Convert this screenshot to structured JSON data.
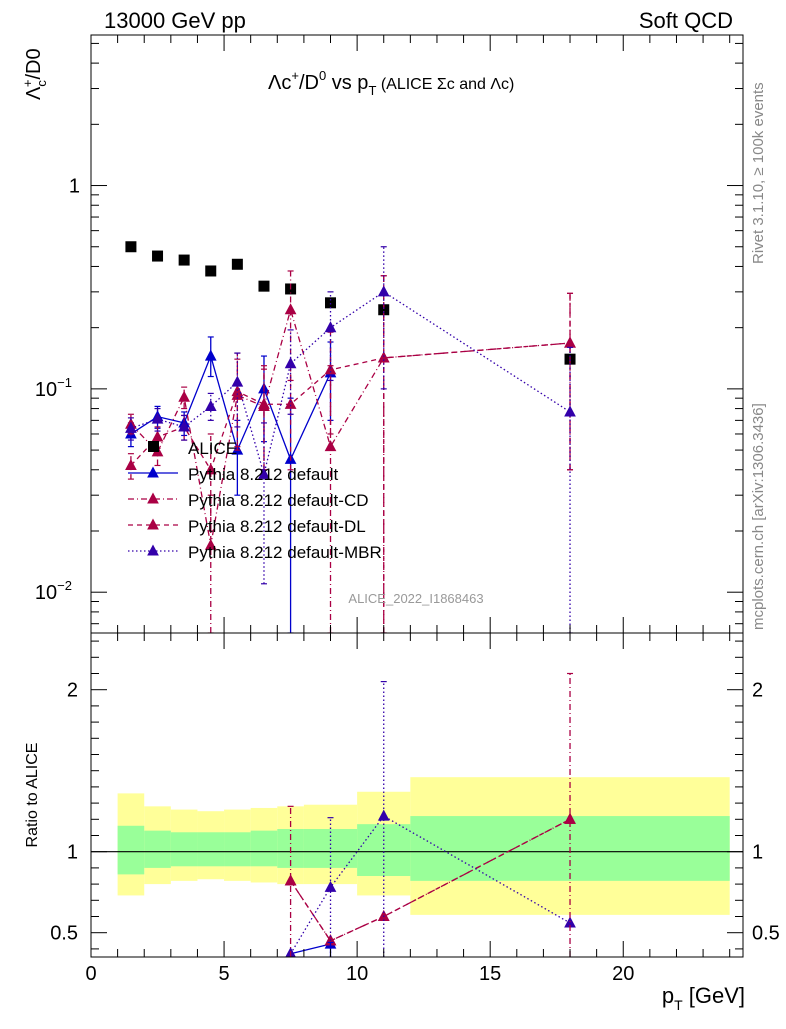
{
  "header": {
    "left": "13000 GeV pp",
    "right": "Soft QCD"
  },
  "side_label": {
    "rivet": "Rivet 3.1.10, ≥ 100k events",
    "mcplots": "mcplots.cern.ch [arXiv:1306.3436]"
  },
  "chart_data": [
    {
      "type": "scatter",
      "scale": "log",
      "title": "Λc⁺/D⁰ vs p_T (ALICE Σc and Λc)",
      "ylabel": "Λc⁺/D0",
      "analysis_label": "ALICE_2022_I1868463",
      "xlim": [
        0,
        24.5
      ],
      "ylim": [
        0.0063,
        5.5
      ],
      "y_tick_labels": [
        "10⁻²",
        "10⁻¹",
        "1"
      ],
      "legend": {
        "position": "middle-left",
        "entries": [
          "ALICE",
          "Pythia 8.212 default",
          "Pythia 8.212 default-CD",
          "Pythia 8.212 default-DL",
          "Pythia 8.212 default-MBR"
        ]
      },
      "series": [
        {
          "name": "ALICE",
          "color": "#000000",
          "marker": "square",
          "line": "none",
          "points": [
            {
              "x": 1.5,
              "y": 0.5
            },
            {
              "x": 2.5,
              "y": 0.45
            },
            {
              "x": 3.5,
              "y": 0.43
            },
            {
              "x": 4.5,
              "y": 0.38
            },
            {
              "x": 5.5,
              "y": 0.41
            },
            {
              "x": 6.5,
              "y": 0.32
            },
            {
              "x": 7.5,
              "y": 0.31
            },
            {
              "x": 9.0,
              "y": 0.265
            },
            {
              "x": 11.0,
              "y": 0.245
            },
            {
              "x": 18.0,
              "y": 0.14
            }
          ]
        },
        {
          "name": "Pythia 8.212 default",
          "color": "#0000cc",
          "marker": "triangle",
          "line": "solid",
          "points": [
            {
              "x": 1.5,
              "y": 0.06,
              "lo": 0.052,
              "hi": 0.068
            },
            {
              "x": 2.5,
              "y": 0.073,
              "lo": 0.064,
              "hi": 0.082
            },
            {
              "x": 3.5,
              "y": 0.068,
              "lo": 0.059,
              "hi": 0.077
            },
            {
              "x": 4.5,
              "y": 0.145,
              "lo": 0.115,
              "hi": 0.18
            },
            {
              "x": 5.5,
              "y": 0.05,
              "lo": 0.03,
              "hi": 0.07
            },
            {
              "x": 6.5,
              "y": 0.1,
              "lo": 0.055,
              "hi": 0.145
            },
            {
              "x": 7.5,
              "y": 0.045,
              "lo": 0.0063,
              "hi": 0.09
            },
            {
              "x": 9.0,
              "y": 0.12,
              "lo": 0.07,
              "hi": 0.17
            }
          ]
        },
        {
          "name": "Pythia 8.212 default-CD",
          "color": "#aa0044",
          "marker": "triangle",
          "line": "dashdot",
          "points": [
            {
              "x": 1.5,
              "y": 0.067,
              "lo": 0.06,
              "hi": 0.075
            },
            {
              "x": 2.5,
              "y": 0.049,
              "lo": 0.042,
              "hi": 0.056
            },
            {
              "x": 3.5,
              "y": 0.091,
              "lo": 0.08,
              "hi": 0.102
            },
            {
              "x": 4.5,
              "y": 0.017,
              "lo": 0.0063,
              "hi": 0.03
            },
            {
              "x": 5.5,
              "y": 0.093,
              "lo": 0.05,
              "hi": 0.14
            },
            {
              "x": 6.5,
              "y": 0.082,
              "lo": 0.04,
              "hi": 0.125
            },
            {
              "x": 7.5,
              "y": 0.245,
              "lo": 0.11,
              "hi": 0.38
            },
            {
              "x": 9.0,
              "y": 0.052,
              "lo": 0.0063,
              "hi": 0.13
            },
            {
              "x": 11.0,
              "y": 0.142,
              "lo": 0.0063,
              "hi": 0.36
            },
            {
              "x": 18.0,
              "y": 0.168,
              "lo": 0.04,
              "hi": 0.295
            }
          ]
        },
        {
          "name": "Pythia 8.212 default-DL",
          "color": "#aa0044",
          "marker": "triangle",
          "line": "dashed",
          "points": [
            {
              "x": 1.5,
              "y": 0.042,
              "lo": 0.036,
              "hi": 0.048
            },
            {
              "x": 2.5,
              "y": 0.058,
              "lo": 0.051,
              "hi": 0.065
            },
            {
              "x": 3.5,
              "y": 0.065,
              "lo": 0.056,
              "hi": 0.074
            },
            {
              "x": 4.5,
              "y": 0.04,
              "lo": 0.02,
              "hi": 0.06
            },
            {
              "x": 5.5,
              "y": 0.097,
              "lo": 0.052,
              "hi": 0.15
            },
            {
              "x": 6.5,
              "y": 0.084,
              "lo": 0.04,
              "hi": 0.13
            },
            {
              "x": 7.5,
              "y": 0.084,
              "lo": 0.04,
              "hi": 0.13
            },
            {
              "x": 9.0,
              "y": 0.124,
              "lo": 0.06,
              "hi": 0.19
            },
            {
              "x": 11.0,
              "y": 0.142,
              "lo": 0.0063,
              "hi": 0.36
            },
            {
              "x": 18.0,
              "y": 0.168,
              "lo": 0.04,
              "hi": 0.295
            }
          ]
        },
        {
          "name": "Pythia 8.212 default-MBR",
          "color": "#3300aa",
          "marker": "triangle",
          "line": "dotted",
          "points": [
            {
              "x": 1.5,
              "y": 0.064,
              "lo": 0.056,
              "hi": 0.072
            },
            {
              "x": 2.5,
              "y": 0.071,
              "lo": 0.062,
              "hi": 0.08
            },
            {
              "x": 3.5,
              "y": 0.065,
              "lo": 0.056,
              "hi": 0.074
            },
            {
              "x": 4.5,
              "y": 0.082,
              "lo": 0.07,
              "hi": 0.095
            },
            {
              "x": 5.5,
              "y": 0.108,
              "lo": 0.065,
              "hi": 0.15
            },
            {
              "x": 6.5,
              "y": 0.038,
              "lo": 0.011,
              "hi": 0.068
            },
            {
              "x": 7.5,
              "y": 0.133,
              "lo": 0.075,
              "hi": 0.195
            },
            {
              "x": 9.0,
              "y": 0.2,
              "lo": 0.11,
              "hi": 0.3
            },
            {
              "x": 11.0,
              "y": 0.3,
              "lo": 0.1,
              "hi": 0.5
            },
            {
              "x": 18.0,
              "y": 0.077,
              "lo": 0.0063,
              "hi": 0.16
            }
          ]
        }
      ]
    },
    {
      "type": "line",
      "ylabel": "Ratio to ALICE",
      "xlabel": "p_T [GeV]",
      "xlim": [
        0,
        24.5
      ],
      "ylim": [
        0.35,
        2.35
      ],
      "x_ticks": [
        0,
        5,
        10,
        15,
        20
      ],
      "y_ticks": [
        0.5,
        1,
        2
      ],
      "bands": [
        {
          "x0": 1.0,
          "x1": 2.0,
          "inner": [
            0.86,
            1.16
          ],
          "outer": [
            0.73,
            1.36
          ]
        },
        {
          "x0": 2.0,
          "x1": 3.0,
          "inner": [
            0.9,
            1.13
          ],
          "outer": [
            0.8,
            1.28
          ]
        },
        {
          "x0": 3.0,
          "x1": 4.0,
          "inner": [
            0.91,
            1.12
          ],
          "outer": [
            0.82,
            1.26
          ]
        },
        {
          "x0": 4.0,
          "x1": 5.0,
          "inner": [
            0.91,
            1.12
          ],
          "outer": [
            0.83,
            1.25
          ]
        },
        {
          "x0": 5.0,
          "x1": 6.0,
          "inner": [
            0.91,
            1.12
          ],
          "outer": [
            0.82,
            1.26
          ]
        },
        {
          "x0": 6.0,
          "x1": 7.0,
          "inner": [
            0.91,
            1.13
          ],
          "outer": [
            0.81,
            1.27
          ]
        },
        {
          "x0": 7.0,
          "x1": 8.0,
          "inner": [
            0.9,
            1.14
          ],
          "outer": [
            0.8,
            1.28
          ]
        },
        {
          "x0": 8.0,
          "x1": 10.0,
          "inner": [
            0.9,
            1.14
          ],
          "outer": [
            0.8,
            1.29
          ]
        },
        {
          "x0": 10.0,
          "x1": 12.0,
          "inner": [
            0.85,
            1.17
          ],
          "outer": [
            0.73,
            1.37
          ]
        },
        {
          "x0": 12.0,
          "x1": 24.0,
          "inner": [
            0.82,
            1.22
          ],
          "outer": [
            0.61,
            1.46
          ]
        }
      ],
      "series": [
        {
          "name": "Pythia 8.212 default",
          "color": "#0000cc",
          "line": "solid",
          "points": [
            {
              "x": 7.5,
              "y": 0.37
            },
            {
              "x": 9.0,
              "y": 0.43
            }
          ]
        },
        {
          "name": "Pythia 8.212 default-CD",
          "color": "#aa0044",
          "line": "dashdot",
          "points": [
            {
              "x": 7.5,
              "y": 0.82
            },
            {
              "x": 9.0,
              "y": 0.45
            },
            {
              "x": 11.0,
              "y": 0.6
            },
            {
              "x": 18.0,
              "y": 1.2
            }
          ]
        },
        {
          "name": "Pythia 8.212 default-DL",
          "color": "#aa0044",
          "line": "dashed",
          "points": [
            {
              "x": 7.5,
              "y": 0.82
            },
            {
              "x": 9.0,
              "y": 0.45
            },
            {
              "x": 11.0,
              "y": 0.6
            },
            {
              "x": 18.0,
              "y": 1.2
            }
          ]
        },
        {
          "name": "Pythia 8.212 default-MBR",
          "color": "#3300aa",
          "line": "dotted",
          "points": [
            {
              "x": 7.5,
              "y": 0.37
            },
            {
              "x": 9.0,
              "y": 0.78
            },
            {
              "x": 11.0,
              "y": 1.22
            },
            {
              "x": 18.0,
              "y": 0.56
            }
          ]
        }
      ]
    }
  ]
}
